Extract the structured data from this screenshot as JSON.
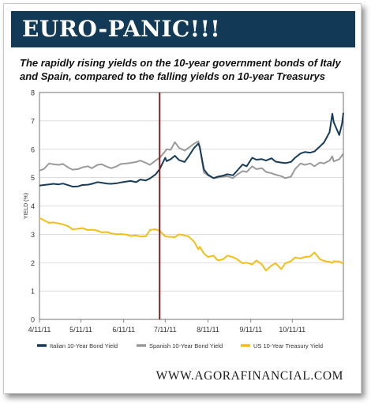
{
  "banner": {
    "title": "EURO-PANIC!!!"
  },
  "subtitle": "The rapidly rising yields on the 10-year government bonds of Italy and Spain, compared to the falling yields on 10-year Treasurys",
  "footer": {
    "url": "WWW.AGORAFINANCIAL.COM"
  },
  "colors": {
    "banner_bg": "#123a57",
    "italy": "#163c5a",
    "spain": "#9a9a9a",
    "us": "#f2bf18",
    "marker": "#8b1c1c"
  },
  "chart_data": {
    "type": "line",
    "title": "",
    "xlabel": "",
    "ylabel": "YIELD (%)",
    "ylim": [
      0,
      8
    ],
    "yticks": [
      0,
      1,
      2,
      3,
      4,
      5,
      6,
      7,
      8
    ],
    "x_ticks": [
      "2011-04-11",
      "2011-05-11",
      "2011-06-11",
      "2011-07-11",
      "2011-08-11",
      "2011-09-11",
      "2011-10-11"
    ],
    "x_tick_labels": [
      "4/11/11",
      "5/11/11",
      "6/11/11",
      "7/11/11",
      "8/11/11",
      "9/11/11",
      "10/11/11"
    ],
    "x_range": [
      "2011-04-11",
      "2011-11-17"
    ],
    "grid": "horizontal",
    "legend_position": "bottom",
    "annotations": [
      {
        "type": "vertical-line",
        "x": "2011-07-07"
      }
    ],
    "series": [
      {
        "name": "Italian 10-Year Bond Yield",
        "points": [
          [
            "2011-04-11",
            4.72
          ],
          [
            "2011-04-14",
            4.74
          ],
          [
            "2011-04-18",
            4.76
          ],
          [
            "2011-04-21",
            4.78
          ],
          [
            "2011-04-25",
            4.76
          ],
          [
            "2011-04-28",
            4.79
          ],
          [
            "2011-05-02",
            4.73
          ],
          [
            "2011-05-05",
            4.68
          ],
          [
            "2011-05-09",
            4.69
          ],
          [
            "2011-05-12",
            4.74
          ],
          [
            "2011-05-16",
            4.75
          ],
          [
            "2011-05-19",
            4.78
          ],
          [
            "2011-05-23",
            4.84
          ],
          [
            "2011-05-26",
            4.82
          ],
          [
            "2011-05-30",
            4.79
          ],
          [
            "2011-06-02",
            4.78
          ],
          [
            "2011-06-06",
            4.8
          ],
          [
            "2011-06-09",
            4.83
          ],
          [
            "2011-06-13",
            4.86
          ],
          [
            "2011-06-16",
            4.88
          ],
          [
            "2011-06-20",
            4.84
          ],
          [
            "2011-06-23",
            4.93
          ],
          [
            "2011-06-27",
            4.9
          ],
          [
            "2011-06-30",
            4.97
          ],
          [
            "2011-07-04",
            5.11
          ],
          [
            "2011-07-07",
            5.3
          ],
          [
            "2011-07-11",
            5.7
          ],
          [
            "2011-07-12",
            5.58
          ],
          [
            "2011-07-15",
            5.65
          ],
          [
            "2011-07-18",
            5.77
          ],
          [
            "2011-07-21",
            5.62
          ],
          [
            "2011-07-25",
            5.55
          ],
          [
            "2011-07-28",
            5.75
          ],
          [
            "2011-08-01",
            6.05
          ],
          [
            "2011-08-04",
            6.2
          ],
          [
            "2011-08-05",
            6.08
          ],
          [
            "2011-08-08",
            5.29
          ],
          [
            "2011-08-11",
            5.1
          ],
          [
            "2011-08-15",
            4.98
          ],
          [
            "2011-08-18",
            5.03
          ],
          [
            "2011-08-22",
            5.07
          ],
          [
            "2011-08-25",
            5.12
          ],
          [
            "2011-08-29",
            5.08
          ],
          [
            "2011-09-01",
            5.24
          ],
          [
            "2011-09-05",
            5.46
          ],
          [
            "2011-09-08",
            5.4
          ],
          [
            "2011-09-12",
            5.7
          ],
          [
            "2011-09-15",
            5.63
          ],
          [
            "2011-09-19",
            5.65
          ],
          [
            "2011-09-22",
            5.6
          ],
          [
            "2011-09-26",
            5.68
          ],
          [
            "2011-09-29",
            5.56
          ],
          [
            "2011-10-03",
            5.53
          ],
          [
            "2011-10-06",
            5.51
          ],
          [
            "2011-10-10",
            5.55
          ],
          [
            "2011-10-13",
            5.7
          ],
          [
            "2011-10-17",
            5.85
          ],
          [
            "2011-10-20",
            5.9
          ],
          [
            "2011-10-24",
            5.88
          ],
          [
            "2011-10-27",
            5.92
          ],
          [
            "2011-10-31",
            6.1
          ],
          [
            "2011-11-03",
            6.24
          ],
          [
            "2011-11-07",
            6.6
          ],
          [
            "2011-11-09",
            7.25
          ],
          [
            "2011-11-10",
            6.95
          ],
          [
            "2011-11-14",
            6.5
          ],
          [
            "2011-11-16",
            6.9
          ],
          [
            "2011-11-17",
            7.28
          ]
        ]
      },
      {
        "name": "Spanish 10-Year Bond Yield",
        "points": [
          [
            "2011-04-11",
            5.25
          ],
          [
            "2011-04-14",
            5.3
          ],
          [
            "2011-04-18",
            5.5
          ],
          [
            "2011-04-21",
            5.47
          ],
          [
            "2011-04-25",
            5.45
          ],
          [
            "2011-04-28",
            5.48
          ],
          [
            "2011-05-02",
            5.35
          ],
          [
            "2011-05-05",
            5.28
          ],
          [
            "2011-05-09",
            5.3
          ],
          [
            "2011-05-12",
            5.36
          ],
          [
            "2011-05-16",
            5.4
          ],
          [
            "2011-05-19",
            5.33
          ],
          [
            "2011-05-23",
            5.45
          ],
          [
            "2011-05-26",
            5.47
          ],
          [
            "2011-05-30",
            5.38
          ],
          [
            "2011-06-02",
            5.33
          ],
          [
            "2011-06-06",
            5.4
          ],
          [
            "2011-06-09",
            5.48
          ],
          [
            "2011-06-13",
            5.5
          ],
          [
            "2011-06-16",
            5.52
          ],
          [
            "2011-06-20",
            5.55
          ],
          [
            "2011-06-23",
            5.6
          ],
          [
            "2011-06-27",
            5.52
          ],
          [
            "2011-06-30",
            5.45
          ],
          [
            "2011-07-04",
            5.6
          ],
          [
            "2011-07-07",
            5.7
          ],
          [
            "2011-07-11",
            5.93
          ],
          [
            "2011-07-12",
            6.0
          ],
          [
            "2011-07-15",
            5.98
          ],
          [
            "2011-07-18",
            6.25
          ],
          [
            "2011-07-21",
            6.05
          ],
          [
            "2011-07-25",
            5.95
          ],
          [
            "2011-07-28",
            6.05
          ],
          [
            "2011-08-01",
            6.2
          ],
          [
            "2011-08-04",
            6.28
          ],
          [
            "2011-08-05",
            6.1
          ],
          [
            "2011-08-08",
            5.18
          ],
          [
            "2011-08-11",
            5.08
          ],
          [
            "2011-08-15",
            4.98
          ],
          [
            "2011-08-18",
            5.0
          ],
          [
            "2011-08-22",
            5.03
          ],
          [
            "2011-08-25",
            5.05
          ],
          [
            "2011-08-29",
            4.98
          ],
          [
            "2011-09-01",
            5.1
          ],
          [
            "2011-09-05",
            5.23
          ],
          [
            "2011-09-08",
            5.2
          ],
          [
            "2011-09-12",
            5.4
          ],
          [
            "2011-09-15",
            5.3
          ],
          [
            "2011-09-19",
            5.33
          ],
          [
            "2011-09-22",
            5.2
          ],
          [
            "2011-09-26",
            5.15
          ],
          [
            "2011-09-29",
            5.1
          ],
          [
            "2011-10-03",
            5.05
          ],
          [
            "2011-10-06",
            4.98
          ],
          [
            "2011-10-10",
            5.03
          ],
          [
            "2011-10-13",
            5.3
          ],
          [
            "2011-10-17",
            5.5
          ],
          [
            "2011-10-20",
            5.45
          ],
          [
            "2011-10-24",
            5.5
          ],
          [
            "2011-10-27",
            5.4
          ],
          [
            "2011-10-31",
            5.53
          ],
          [
            "2011-11-03",
            5.5
          ],
          [
            "2011-11-07",
            5.6
          ],
          [
            "2011-11-09",
            5.75
          ],
          [
            "2011-11-10",
            5.57
          ],
          [
            "2011-11-14",
            5.65
          ],
          [
            "2011-11-16",
            5.78
          ],
          [
            "2011-11-17",
            5.85
          ]
        ]
      },
      {
        "name": "US 10-Year Treasury Yield",
        "points": [
          [
            "2011-04-11",
            3.58
          ],
          [
            "2011-04-14",
            3.5
          ],
          [
            "2011-04-18",
            3.4
          ],
          [
            "2011-04-21",
            3.42
          ],
          [
            "2011-04-25",
            3.38
          ],
          [
            "2011-04-28",
            3.35
          ],
          [
            "2011-05-02",
            3.28
          ],
          [
            "2011-05-05",
            3.17
          ],
          [
            "2011-05-09",
            3.2
          ],
          [
            "2011-05-12",
            3.22
          ],
          [
            "2011-05-16",
            3.15
          ],
          [
            "2011-05-19",
            3.16
          ],
          [
            "2011-05-23",
            3.13
          ],
          [
            "2011-05-26",
            3.07
          ],
          [
            "2011-05-30",
            3.08
          ],
          [
            "2011-06-02",
            3.03
          ],
          [
            "2011-06-06",
            3.0
          ],
          [
            "2011-06-09",
            3.01
          ],
          [
            "2011-06-13",
            2.99
          ],
          [
            "2011-06-16",
            2.94
          ],
          [
            "2011-06-20",
            2.96
          ],
          [
            "2011-06-23",
            2.92
          ],
          [
            "2011-06-27",
            2.93
          ],
          [
            "2011-06-30",
            3.15
          ],
          [
            "2011-07-04",
            3.18
          ],
          [
            "2011-07-07",
            3.12
          ],
          [
            "2011-07-11",
            2.93
          ],
          [
            "2011-07-12",
            2.92
          ],
          [
            "2011-07-15",
            2.91
          ],
          [
            "2011-07-18",
            2.9
          ],
          [
            "2011-07-21",
            3.0
          ],
          [
            "2011-07-25",
            2.96
          ],
          [
            "2011-07-28",
            2.92
          ],
          [
            "2011-08-01",
            2.74
          ],
          [
            "2011-08-04",
            2.47
          ],
          [
            "2011-08-05",
            2.56
          ],
          [
            "2011-08-08",
            2.33
          ],
          [
            "2011-08-11",
            2.2
          ],
          [
            "2011-08-15",
            2.25
          ],
          [
            "2011-08-18",
            2.08
          ],
          [
            "2011-08-22",
            2.12
          ],
          [
            "2011-08-25",
            2.25
          ],
          [
            "2011-08-29",
            2.2
          ],
          [
            "2011-09-01",
            2.12
          ],
          [
            "2011-09-05",
            1.98
          ],
          [
            "2011-09-08",
            2.0
          ],
          [
            "2011-09-12",
            1.94
          ],
          [
            "2011-09-15",
            2.08
          ],
          [
            "2011-09-19",
            1.94
          ],
          [
            "2011-09-22",
            1.72
          ],
          [
            "2011-09-26",
            1.9
          ],
          [
            "2011-09-29",
            1.98
          ],
          [
            "2011-10-03",
            1.77
          ],
          [
            "2011-10-06",
            1.98
          ],
          [
            "2011-10-10",
            2.05
          ],
          [
            "2011-10-13",
            2.18
          ],
          [
            "2011-10-17",
            2.15
          ],
          [
            "2011-10-20",
            2.2
          ],
          [
            "2011-10-24",
            2.22
          ],
          [
            "2011-10-27",
            2.36
          ],
          [
            "2011-10-31",
            2.12
          ],
          [
            "2011-11-03",
            2.06
          ],
          [
            "2011-11-07",
            2.03
          ],
          [
            "2011-11-09",
            1.99
          ],
          [
            "2011-11-10",
            2.05
          ],
          [
            "2011-11-14",
            2.04
          ],
          [
            "2011-11-16",
            1.99
          ],
          [
            "2011-11-17",
            1.98
          ]
        ]
      }
    ]
  }
}
